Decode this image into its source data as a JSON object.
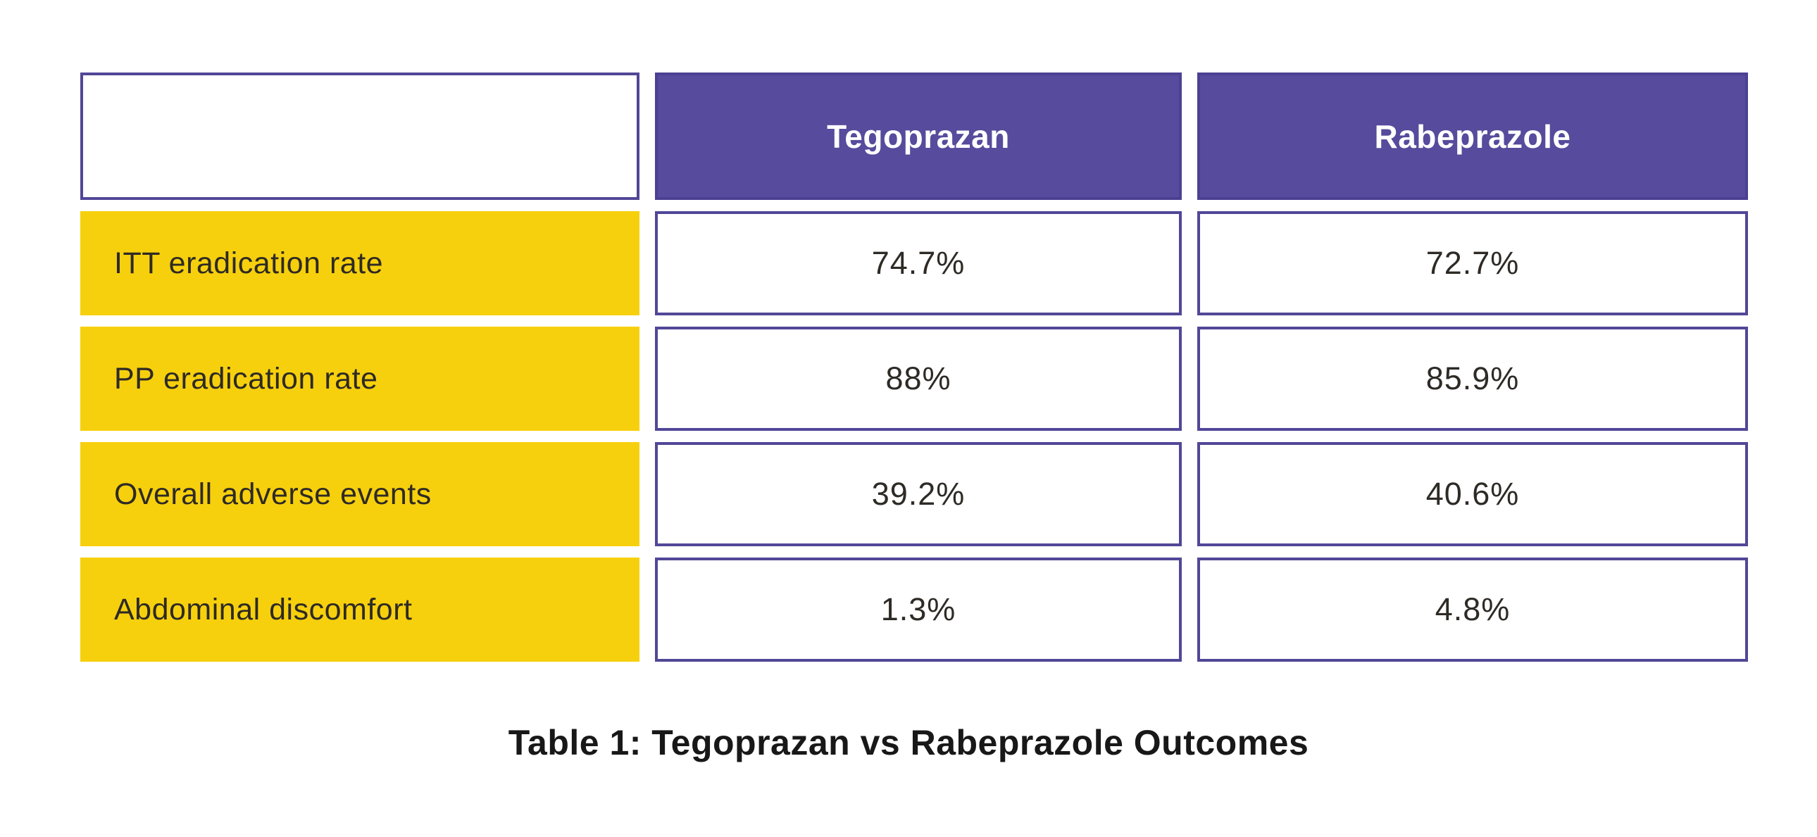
{
  "table": {
    "columns": [
      "",
      "Tegoprazan",
      "Rabeprazole"
    ],
    "rows": [
      {
        "label": "ITT eradication rate",
        "values": [
          "74.7%",
          "72.7%"
        ]
      },
      {
        "label": "PP eradication rate",
        "values": [
          "88%",
          "85.9%"
        ]
      },
      {
        "label": "Overall adverse events",
        "values": [
          "39.2%",
          "40.6%"
        ]
      },
      {
        "label": "Abdominal discomfort",
        "values": [
          "1.3%",
          "4.8%"
        ]
      }
    ],
    "caption": "Table 1: Tegoprazan vs Rabeprazole Outcomes"
  },
  "colors": {
    "background": "#FFFFFF",
    "header_purple": "#564B9C",
    "header_purple_dark": "#4B4192",
    "border_purple": "#514797",
    "label_yellow": "#F7D00D",
    "header_text": "#FFFFFF",
    "text_dark": "#2E2A25",
    "caption_text": "#181818"
  },
  "chart_data": {
    "type": "table",
    "title": "Table 1: Tegoprazan vs Rabeprazole Outcomes",
    "columns": [
      "",
      "Tegoprazan",
      "Rabeprazole"
    ],
    "categories": [
      "ITT eradication rate",
      "PP eradication rate",
      "Overall adverse events",
      "Abdominal discomfort"
    ],
    "series": [
      {
        "name": "Tegoprazan",
        "values": [
          74.7,
          88,
          39.2,
          1.3
        ]
      },
      {
        "name": "Rabeprazole",
        "values": [
          72.7,
          85.9,
          40.6,
          4.8
        ]
      }
    ],
    "units": "%",
    "layout_hints": {
      "header_fill": "purple",
      "row_label_fill": "yellow",
      "value_cells": "white with purple border",
      "caption_position": "below table, centered, bold"
    }
  }
}
